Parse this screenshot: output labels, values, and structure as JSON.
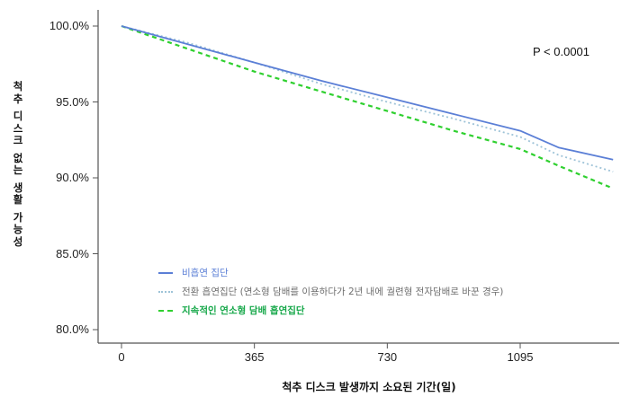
{
  "chart_data": {
    "type": "line",
    "subtype": "kaplan-meier",
    "title": "",
    "xlabel": "척추 디스크 발생까지 소요된 기간(일)",
    "ylabel": "척추 디스크 없는 생활 가능성",
    "x_ticks": [
      "0",
      "365",
      "730",
      "1095"
    ],
    "y_ticks": [
      "80.0%",
      "85.0%",
      "90.0%",
      "95.0%",
      "100.0%"
    ],
    "xlim": [
      0,
      1360
    ],
    "ylim": [
      79.2,
      101.0
    ],
    "grid": false,
    "legend_position": "lower-left inside",
    "annotation": "P < 0.0001",
    "x": [
      0,
      182,
      365,
      547,
      730,
      912,
      1095,
      1200,
      1350
    ],
    "series": [
      {
        "name": "비흡연 집단",
        "style": "solid",
        "color": "#5b7fd6",
        "values": [
          100.0,
          98.8,
          97.6,
          96.4,
          95.3,
          94.2,
          93.1,
          92.0,
          91.2
        ]
      },
      {
        "name": "전환 흡연집단 (연소형 담배를 이용하다가 2년 내에 궐련형 전자담배로 바꾼 경우)",
        "style": "dotted",
        "color": "#9ec3d8",
        "values": [
          100.0,
          98.9,
          97.6,
          96.2,
          95.0,
          93.9,
          92.7,
          91.5,
          90.4
        ]
      },
      {
        "name": "지속적인 연소형 담배 흡연집단",
        "style": "dashed",
        "color": "#2fd02f",
        "values": [
          100.0,
          98.5,
          97.0,
          95.7,
          94.4,
          93.1,
          91.9,
          90.8,
          89.3
        ]
      }
    ]
  },
  "axes": {
    "ylabel_chars": [
      "척",
      "추",
      "",
      "디",
      "스",
      "크",
      "",
      "없",
      "는",
      "",
      "생",
      "활",
      "",
      "가",
      "능",
      "성"
    ],
    "xlabel": "척추 디스크 발생까지 소요된 기간(일)"
  },
  "annotation": {
    "pvalue": "P < 0.0001"
  },
  "legend": [
    {
      "label": "비흡연 집단",
      "color": "#5b7fd6"
    },
    {
      "label": "전환 흡연집단 (연소형 담배를 이용하다가 2년 내에 궐련형 전자담배로 바꾼 경우)",
      "color": "#6e6e6e"
    },
    {
      "label": "지속적인 연소형 담배 흡연집단",
      "color": "#17a84a"
    }
  ]
}
